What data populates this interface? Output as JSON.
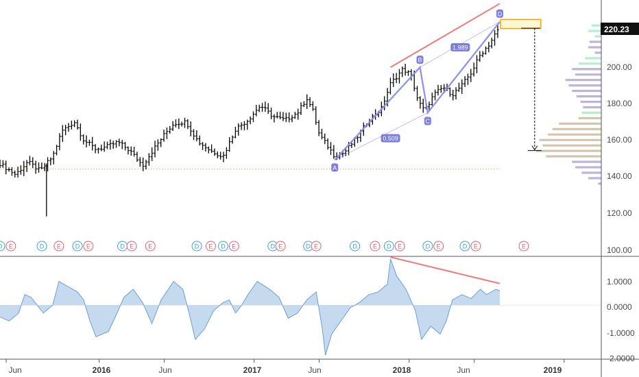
{
  "chart_data": [
    {
      "type": "ohlc",
      "price_label": "220.23",
      "y_ticks": [
        "100.00",
        "120.00",
        "140.00",
        "160.00",
        "180.00",
        "200.00"
      ],
      "ylim": [
        95,
        236
      ],
      "x_tick_labels": [
        "Jun",
        "2016",
        "Jun",
        "2017",
        "Jun",
        "2018",
        "Jun",
        "2019"
      ],
      "x_tick_years": [
        2015.4,
        2016.0,
        2016.42,
        2017.0,
        2017.42,
        2018.0,
        2018.42,
        2019.0
      ],
      "xlim": [
        2015.36,
        2019.24
      ],
      "colors": {
        "bars": "#000000",
        "pattern": "#8a8ae6",
        "trend": "#f07a7a",
        "target": "#f0a500",
        "vp_green": "#a8edc8",
        "vp_purple": "#b7abd6",
        "vp_tan": "#cdbfa8"
      },
      "path": [
        [
          2015.36,
          146
        ],
        [
          2015.46,
          140
        ],
        [
          2015.54,
          147
        ],
        [
          2015.62,
          142
        ],
        [
          2015.7,
          150
        ],
        [
          2015.76,
          164
        ],
        [
          2015.84,
          169
        ],
        [
          2015.9,
          159
        ],
        [
          2015.98,
          154
        ],
        [
          2016.04,
          155
        ],
        [
          2016.12,
          158
        ],
        [
          2016.2,
          153
        ],
        [
          2016.28,
          145
        ],
        [
          2016.36,
          155
        ],
        [
          2016.42,
          162
        ],
        [
          2016.48,
          168
        ],
        [
          2016.56,
          169
        ],
        [
          2016.64,
          158
        ],
        [
          2016.72,
          153
        ],
        [
          2016.8,
          150
        ],
        [
          2016.88,
          165
        ],
        [
          2016.96,
          170
        ],
        [
          2017.04,
          178
        ],
        [
          2017.12,
          172
        ],
        [
          2017.2,
          170
        ],
        [
          2017.28,
          174
        ],
        [
          2017.34,
          182
        ],
        [
          2017.38,
          175
        ],
        [
          2017.42,
          162
        ],
        [
          2017.48,
          155
        ],
        [
          2017.52,
          150
        ],
        [
          2017.58,
          152
        ],
        [
          2017.66,
          160
        ],
        [
          2017.74,
          170
        ],
        [
          2017.82,
          176
        ],
        [
          2017.88,
          190
        ],
        [
          2017.96,
          198
        ],
        [
          2018.01,
          195
        ],
        [
          2018.06,
          180
        ],
        [
          2018.1,
          175
        ],
        [
          2018.16,
          184
        ],
        [
          2018.22,
          188
        ],
        [
          2018.28,
          184
        ],
        [
          2018.34,
          189
        ],
        [
          2018.4,
          196
        ],
        [
          2018.46,
          206
        ],
        [
          2018.52,
          212
        ],
        [
          2018.56,
          218
        ],
        [
          2018.585,
          220.23
        ]
      ],
      "outlier_low": [
        2015.66,
        117
      ],
      "earnings_event": "E",
      "dividend_event": "D",
      "events": [
        {
          "x": 2015.36,
          "label": "D"
        },
        {
          "x": 2015.43,
          "label": "E"
        },
        {
          "x": 2015.63,
          "label": "D"
        },
        {
          "x": 2015.74,
          "label": "E"
        },
        {
          "x": 2015.86,
          "label": "D"
        },
        {
          "x": 2015.93,
          "label": "E"
        },
        {
          "x": 2016.15,
          "label": "D"
        },
        {
          "x": 2016.21,
          "label": "E"
        },
        {
          "x": 2016.33,
          "label": "E"
        },
        {
          "x": 2016.63,
          "label": "D"
        },
        {
          "x": 2016.72,
          "label": "E"
        },
        {
          "x": 2016.8,
          "label": "D"
        },
        {
          "x": 2016.87,
          "label": "E"
        },
        {
          "x": 2017.12,
          "label": "D"
        },
        {
          "x": 2017.17,
          "label": "E"
        },
        {
          "x": 2017.35,
          "label": "D"
        },
        {
          "x": 2017.4,
          "label": "E"
        },
        {
          "x": 2017.65,
          "label": "D"
        },
        {
          "x": 2017.78,
          "label": "E"
        },
        {
          "x": 2017.87,
          "label": "D"
        },
        {
          "x": 2017.94,
          "label": "E"
        },
        {
          "x": 2018.12,
          "label": "D"
        },
        {
          "x": 2018.19,
          "label": "E"
        },
        {
          "x": 2018.36,
          "label": "D"
        },
        {
          "x": 2018.43,
          "label": "E"
        },
        {
          "x": 2018.74,
          "label": "E"
        }
      ],
      "harmonic_pattern": {
        "points": [
          {
            "label": "A",
            "x": 2017.52,
            "y": 148
          },
          {
            "label": "B",
            "x": 2018.07,
            "y": 199
          },
          {
            "label": "C",
            "x": 2018.12,
            "y": 174
          },
          {
            "label": "D",
            "x": 2018.585,
            "y": 224
          }
        ],
        "ratios": [
          {
            "text": "0.509",
            "x": 2017.88,
            "y": 160
          },
          {
            "text": "1.989",
            "x": 2018.33,
            "y": 210
          }
        ]
      },
      "trendline": {
        "x1": 2017.88,
        "y1": 199,
        "x2": 2018.585,
        "y2": 234
      },
      "target_zone": {
        "x1": 2018.59,
        "x2": 2018.85,
        "y1": 220.3,
        "y2": 225.3
      },
      "projection": {
        "x": 2018.81,
        "y_from": 220.5,
        "y_to": 153.2
      },
      "support_line": 143,
      "volume_profile": [
        {
          "price": 222,
          "len": 0.15,
          "color": "green"
        },
        {
          "price": 219,
          "len": 0.2,
          "color": "green"
        },
        {
          "price": 216,
          "len": 0.1,
          "color": "green"
        },
        {
          "price": 213,
          "len": 0.18,
          "color": "purple"
        },
        {
          "price": 210,
          "len": 0.2,
          "color": "purple"
        },
        {
          "price": 207,
          "len": 0.1,
          "color": "purple"
        },
        {
          "price": 204,
          "len": 0.25,
          "color": "green"
        },
        {
          "price": 201,
          "len": 0.35,
          "color": "green"
        },
        {
          "price": 198,
          "len": 0.45,
          "color": "purple"
        },
        {
          "price": 195,
          "len": 0.4,
          "color": "purple"
        },
        {
          "price": 192,
          "len": 0.55,
          "color": "purple"
        },
        {
          "price": 189,
          "len": 0.5,
          "color": "purple"
        },
        {
          "price": 186,
          "len": 0.45,
          "color": "purple"
        },
        {
          "price": 183,
          "len": 0.38,
          "color": "purple"
        },
        {
          "price": 180,
          "len": 0.32,
          "color": "purple"
        },
        {
          "price": 177,
          "len": 0.28,
          "color": "purple"
        },
        {
          "price": 174,
          "len": 0.3,
          "color": "green"
        },
        {
          "price": 171,
          "len": 0.35,
          "color": "tan"
        },
        {
          "price": 168,
          "len": 0.65,
          "color": "tan"
        },
        {
          "price": 165,
          "len": 0.75,
          "color": "tan"
        },
        {
          "price": 162,
          "len": 0.82,
          "color": "tan"
        },
        {
          "price": 159,
          "len": 0.95,
          "color": "tan"
        },
        {
          "price": 156,
          "len": 0.9,
          "color": "tan"
        },
        {
          "price": 153,
          "len": 1.0,
          "color": "tan"
        },
        {
          "price": 150,
          "len": 0.85,
          "color": "tan"
        },
        {
          "price": 147,
          "len": 0.45,
          "color": "purple"
        },
        {
          "price": 144,
          "len": 0.4,
          "color": "purple"
        },
        {
          "price": 141,
          "len": 0.3,
          "color": "purple"
        },
        {
          "price": 138,
          "len": 0.2,
          "color": "purple"
        },
        {
          "price": 135,
          "len": 0.05,
          "color": "purple"
        }
      ]
    },
    {
      "type": "area",
      "y_ticks": [
        "1.0000",
        "0.0000",
        "-1.0000",
        "-2.0000"
      ],
      "ylim": [
        -2.05,
        1.85
      ],
      "colors": {
        "fill": "#bcd4ec",
        "line": "#6a9fd0",
        "trend": "#f07a7a"
      },
      "path": [
        [
          2015.36,
          -0.45
        ],
        [
          2015.42,
          -0.6
        ],
        [
          2015.48,
          -0.3
        ],
        [
          2015.52,
          0.4
        ],
        [
          2015.56,
          0.3
        ],
        [
          2015.6,
          0.0
        ],
        [
          2015.64,
          -0.3
        ],
        [
          2015.7,
          0.0
        ],
        [
          2015.74,
          0.9
        ],
        [
          2015.8,
          0.7
        ],
        [
          2015.86,
          0.5
        ],
        [
          2015.9,
          0.2
        ],
        [
          2015.94,
          -0.6
        ],
        [
          2015.98,
          -1.2
        ],
        [
          2016.06,
          -1.0
        ],
        [
          2016.1,
          -0.5
        ],
        [
          2016.16,
          0.3
        ],
        [
          2016.22,
          0.6
        ],
        [
          2016.28,
          0.1
        ],
        [
          2016.34,
          -0.7
        ],
        [
          2016.4,
          0.2
        ],
        [
          2016.48,
          0.9
        ],
        [
          2016.54,
          0.6
        ],
        [
          2016.58,
          -0.3
        ],
        [
          2016.62,
          -1.3
        ],
        [
          2016.68,
          -0.9
        ],
        [
          2016.74,
          -0.2
        ],
        [
          2016.8,
          0.1
        ],
        [
          2016.84,
          0.2
        ],
        [
          2016.88,
          -0.3
        ],
        [
          2016.92,
          0.0
        ],
        [
          2016.96,
          0.4
        ],
        [
          2017.02,
          0.9
        ],
        [
          2017.1,
          0.6
        ],
        [
          2017.16,
          0.3
        ],
        [
          2017.22,
          -0.5
        ],
        [
          2017.28,
          -0.3
        ],
        [
          2017.34,
          0.2
        ],
        [
          2017.4,
          0.5
        ],
        [
          2017.44,
          -0.9
        ],
        [
          2017.46,
          -1.9
        ],
        [
          2017.5,
          -1.1
        ],
        [
          2017.56,
          -0.6
        ],
        [
          2017.62,
          -0.1
        ],
        [
          2017.68,
          0.1
        ],
        [
          2017.74,
          0.4
        ],
        [
          2017.8,
          0.5
        ],
        [
          2017.86,
          0.8
        ],
        [
          2017.88,
          1.75
        ],
        [
          2017.92,
          1.1
        ],
        [
          2017.98,
          0.6
        ],
        [
          2018.04,
          -0.2
        ],
        [
          2018.08,
          -1.3
        ],
        [
          2018.14,
          -0.8
        ],
        [
          2018.2,
          -1.1
        ],
        [
          2018.24,
          -0.6
        ],
        [
          2018.28,
          0.2
        ],
        [
          2018.34,
          0.4
        ],
        [
          2018.4,
          0.25
        ],
        [
          2018.46,
          0.6
        ],
        [
          2018.5,
          0.4
        ],
        [
          2018.56,
          0.6
        ],
        [
          2018.585,
          0.55
        ]
      ],
      "trendline": {
        "x1": 2017.88,
        "y1": 1.82,
        "x2": 2018.585,
        "y2": 0.82
      }
    }
  ]
}
